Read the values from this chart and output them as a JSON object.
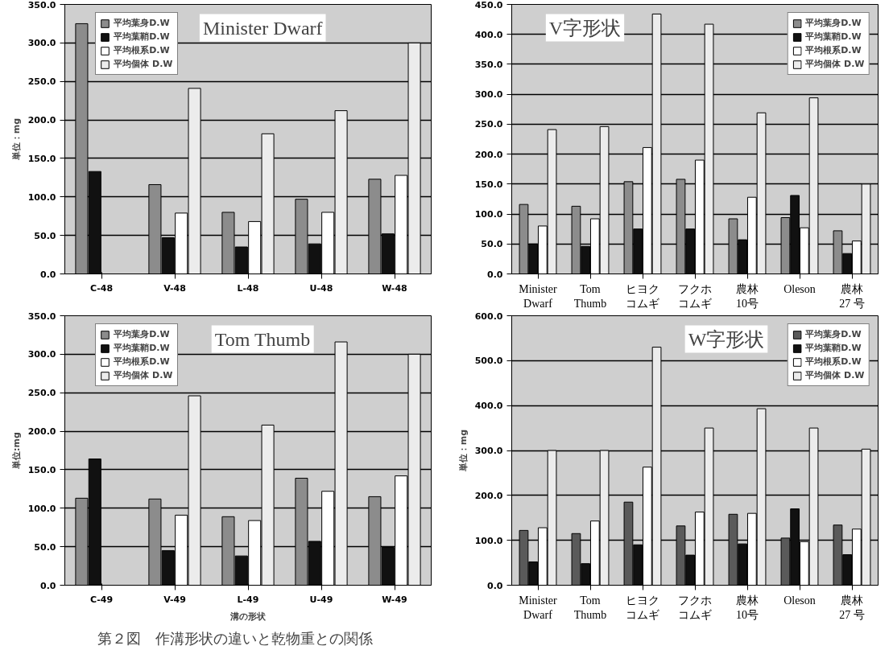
{
  "chart_data": [
    {
      "type": "bar",
      "title": "Minister Dwarf",
      "ylabel": "単位：mg",
      "categories": [
        "C-48",
        "V-48",
        "L-48",
        "U-48",
        "W-48"
      ],
      "ylim": [
        0,
        350
      ],
      "yticks": [
        {
          "value": 0,
          "label": "0.0"
        },
        {
          "value": 50,
          "label": "50.0"
        },
        {
          "value": 100,
          "label": "100.0"
        },
        {
          "value": 150,
          "label": "150.0"
        },
        {
          "value": 200,
          "label": "200.0"
        },
        {
          "value": 250,
          "label": "250.0"
        },
        {
          "value": 300,
          "label": "300.0"
        },
        {
          "value": 350,
          "label": "350.0"
        }
      ],
      "grid": "y",
      "legend": "top left",
      "series": [
        {
          "name": "平均葉身D.W",
          "color": "#8c8c8c",
          "values": [
            325,
            116,
            80,
            97,
            123
          ]
        },
        {
          "name": "平均葉鞘D.W",
          "color": "#111111",
          "values": [
            133,
            47,
            35,
            39,
            52
          ]
        },
        {
          "name": "平均根系D.W",
          "color": "#ffffff",
          "values": [
            null,
            79,
            68,
            80,
            128
          ]
        },
        {
          "name": "平均個体 D.W",
          "color": "#ececec",
          "values": [
            null,
            241,
            182,
            212,
            300
          ]
        }
      ]
    },
    {
      "type": "bar",
      "title": "V字形状",
      "categories": [
        "Minister\nDwarf",
        "Tom\nThumb",
        "ヒヨクコムギ",
        "フクホコムギ",
        "農林\n10号",
        "Oleson",
        "農林\n27 号"
      ],
      "ylim": [
        0,
        450
      ],
      "yticks": [
        {
          "value": 0,
          "label": "0.0"
        },
        {
          "value": 50,
          "label": "50.0"
        },
        {
          "value": 100,
          "label": "100.0"
        },
        {
          "value": 150,
          "label": "150.0"
        },
        {
          "value": 200,
          "label": "200.0"
        },
        {
          "value": 250,
          "label": "250.0"
        },
        {
          "value": 300,
          "label": "300.0"
        },
        {
          "value": 350,
          "label": "350.0"
        },
        {
          "value": 400,
          "label": "400.0"
        },
        {
          "value": 450,
          "label": "450.0"
        }
      ],
      "grid": "y",
      "legend": "top right",
      "series": [
        {
          "name": "平均葉身D.W",
          "color": "#8c8c8c",
          "values": [
            116,
            113,
            154,
            158,
            92,
            94,
            72
          ]
        },
        {
          "name": "平均葉鞘D.W",
          "color": "#111111",
          "values": [
            50,
            46,
            75,
            75,
            57,
            131,
            34
          ]
        },
        {
          "name": "平均根系D.W",
          "color": "#ffffff",
          "values": [
            80,
            92,
            211,
            190,
            128,
            77,
            55
          ]
        },
        {
          "name": "平均個体 D.W",
          "color": "#ececec",
          "values": [
            241,
            246,
            434,
            417,
            269,
            294,
            150
          ]
        }
      ]
    },
    {
      "type": "bar",
      "title": "Tom Thumb",
      "ylabel": "単位:mg",
      "xlabel": "溝の形状",
      "annotations": [
        "第２図　作溝形状の違いと乾物重との関係"
      ],
      "categories": [
        "C-49",
        "V-49",
        "L-49",
        "U-49",
        "W-49"
      ],
      "ylim": [
        0,
        350
      ],
      "yticks": [
        {
          "value": 0,
          "label": "0.0"
        },
        {
          "value": 50,
          "label": "50.0"
        },
        {
          "value": 100,
          "label": "100.0"
        },
        {
          "value": 150,
          "label": "150.0"
        },
        {
          "value": 200,
          "label": "200.0"
        },
        {
          "value": 250,
          "label": "250.0"
        },
        {
          "value": 300,
          "label": "300.0"
        },
        {
          "value": 350,
          "label": "350.0"
        }
      ],
      "grid": "y",
      "legend": "top left",
      "series": [
        {
          "name": "平均葉身D.W",
          "color": "#8c8c8c",
          "values": [
            113,
            112,
            89,
            139,
            115
          ]
        },
        {
          "name": "平均葉鞘D.W",
          "color": "#111111",
          "values": [
            164,
            45,
            38,
            57,
            49
          ]
        },
        {
          "name": "平均根系D.W",
          "color": "#ffffff",
          "values": [
            null,
            91,
            84,
            122,
            142
          ]
        },
        {
          "name": "平均個体 D.W",
          "color": "#ececec",
          "values": [
            null,
            246,
            208,
            316,
            300
          ]
        }
      ]
    },
    {
      "type": "bar",
      "title": "W字形状",
      "ylabel": "単位：mg",
      "categories": [
        "Minister\nDwarf",
        "Tom\nThumb",
        "ヒヨクコムギ",
        "フクホコムギ",
        "農林\n10号",
        "Oleson",
        "農林\n27 号"
      ],
      "ylim": [
        0,
        600
      ],
      "yticks": [
        {
          "value": 0,
          "label": "0.0"
        },
        {
          "value": 100,
          "label": "100.0"
        },
        {
          "value": 200,
          "label": "200.0"
        },
        {
          "value": 300,
          "label": "300.0"
        },
        {
          "value": 400,
          "label": "400.0"
        },
        {
          "value": 500,
          "label": "500.0"
        },
        {
          "value": 600,
          "label": "600.0"
        }
      ],
      "grid": "y",
      "legend": "top right",
      "series": [
        {
          "name": "平均葉身D.W",
          "color": "#5a5a5a",
          "values": [
            122,
            115,
            185,
            132,
            158,
            105,
            134
          ]
        },
        {
          "name": "平均葉鞘D.W",
          "color": "#111111",
          "values": [
            52,
            48,
            90,
            67,
            92,
            170,
            68
          ]
        },
        {
          "name": "平均根系D.W",
          "color": "#ffffff",
          "values": [
            128,
            143,
            263,
            163,
            160,
            97,
            125
          ]
        },
        {
          "name": "平均個体 D.W",
          "color": "#ececec",
          "values": [
            300,
            300,
            530,
            350,
            393,
            350,
            303
          ]
        }
      ]
    }
  ]
}
